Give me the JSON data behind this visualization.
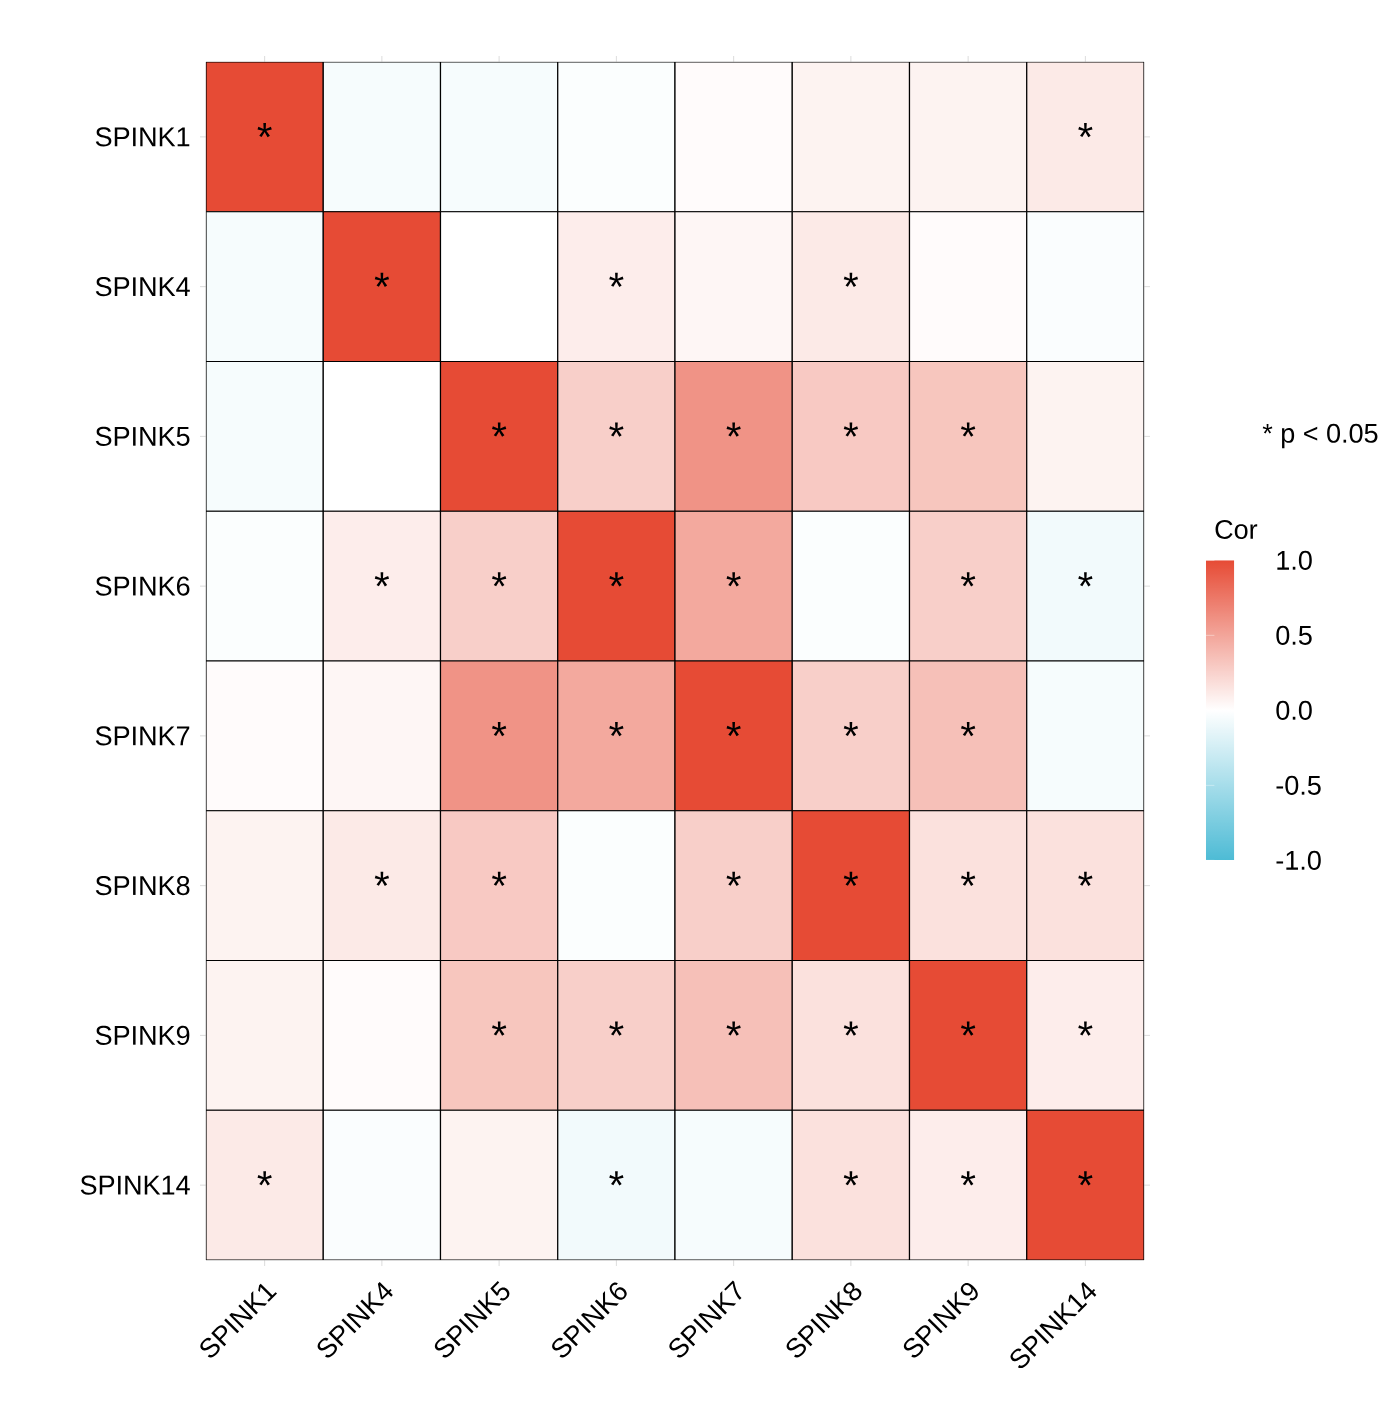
{
  "chart_data": {
    "type": "heatmap",
    "categories": [
      "SPINK1",
      "SPINK4",
      "SPINK5",
      "SPINK6",
      "SPINK7",
      "SPINK8",
      "SPINK9",
      "SPINK14"
    ],
    "y_categories": [
      "SPINK1",
      "SPINK4",
      "SPINK5",
      "SPINK6",
      "SPINK7",
      "SPINK8",
      "SPINK9",
      "SPINK14"
    ],
    "cells": [
      [
        1,
        -0.05,
        -0.05,
        -0.02,
        0.02,
        0.07,
        0.07,
        0.12
      ],
      [
        -0.05,
        1,
        0,
        0.1,
        0.05,
        0.12,
        0.02,
        -0.03
      ],
      [
        -0.05,
        0,
        1,
        0.27,
        0.6,
        0.3,
        0.32,
        0.07
      ],
      [
        -0.02,
        0.1,
        0.27,
        1,
        0.48,
        -0.02,
        0.27,
        -0.07
      ],
      [
        0.02,
        0.05,
        0.6,
        0.48,
        1,
        0.27,
        0.35,
        -0.05
      ],
      [
        0.07,
        0.12,
        0.3,
        -0.02,
        0.27,
        1,
        0.17,
        0.17
      ],
      [
        0.07,
        0.02,
        0.32,
        0.27,
        0.35,
        0.17,
        1,
        0.1
      ],
      [
        0.12,
        -0.03,
        0.07,
        -0.07,
        -0.05,
        0.17,
        0.1,
        1
      ]
    ],
    "cell_labels": [
      [
        "*",
        null,
        null,
        null,
        null,
        null,
        null,
        "*"
      ],
      [
        null,
        "*",
        null,
        "*",
        null,
        "*",
        null,
        null
      ],
      [
        null,
        null,
        "*",
        "*",
        "*",
        "*",
        "*",
        null
      ],
      [
        null,
        "*",
        "*",
        "*",
        "*",
        null,
        "*",
        "*"
      ],
      [
        null,
        null,
        "*",
        "*",
        "*",
        "*",
        "*",
        null
      ],
      [
        null,
        "*",
        "*",
        null,
        "*",
        "*",
        "*",
        "*"
      ],
      [
        null,
        null,
        "*",
        "*",
        "*",
        "*",
        "*",
        "*"
      ],
      [
        "*",
        null,
        null,
        "*",
        null,
        "*",
        "*",
        "*"
      ]
    ],
    "clim": [
      -1,
      1
    ],
    "cticks": [
      {
        "value": -1,
        "label": "-1.0"
      },
      {
        "value": -0.5,
        "label": "-0.5"
      },
      {
        "value": 0,
        "label": "0.0"
      },
      {
        "value": 0.5,
        "label": "0.5"
      },
      {
        "value": 1,
        "label": "1.0"
      }
    ],
    "clabel": "Cor",
    "annotations": [
      "* p < 0.05"
    ]
  }
}
